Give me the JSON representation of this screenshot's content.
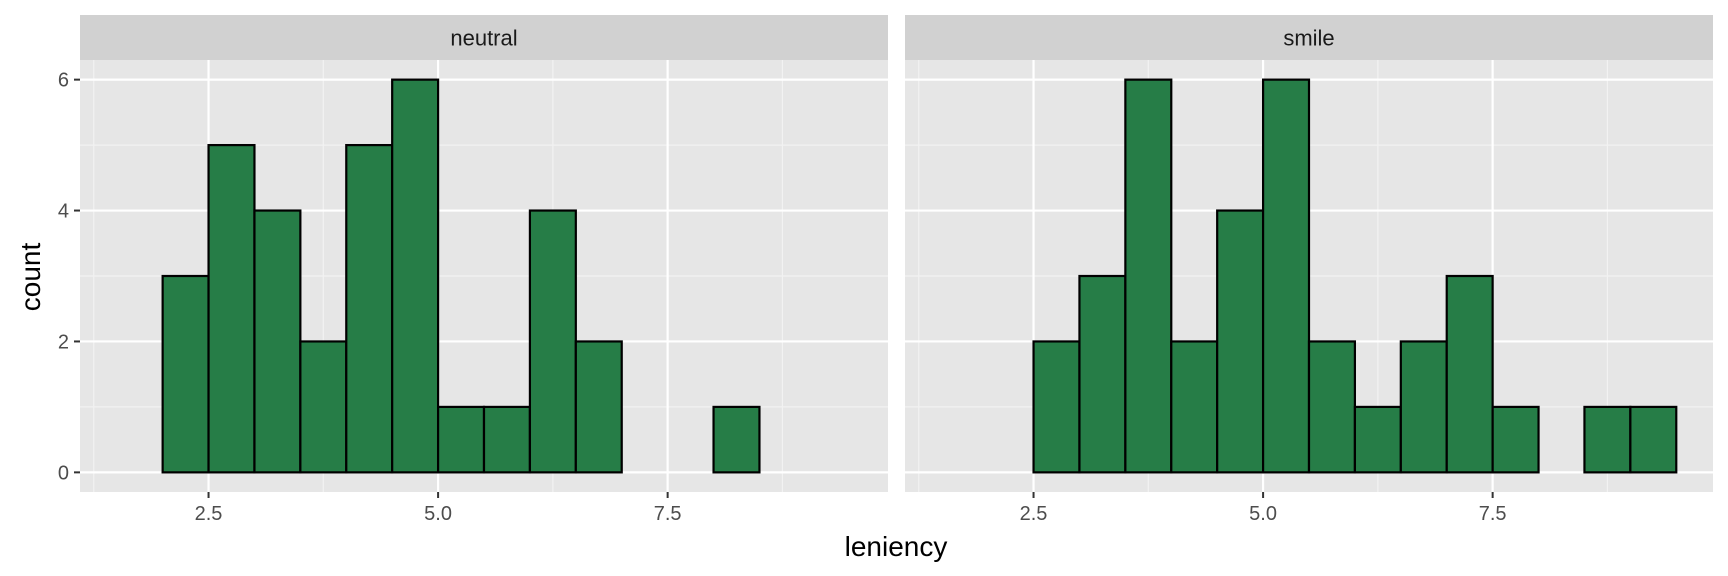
{
  "chart_data": {
    "type": "bar",
    "subtype": "faceted-histogram",
    "xlabel": "leniency",
    "ylabel": "count",
    "xlim": [
      1.1,
      9.9
    ],
    "ylim": [
      -0.3,
      6.3
    ],
    "x_ticks": [
      2.5,
      5.0,
      7.5
    ],
    "x_tick_labels": [
      "2.5",
      "5.0",
      "7.5"
    ],
    "y_ticks": [
      0,
      2,
      4,
      6
    ],
    "y_tick_labels": [
      "0",
      "2",
      "4",
      "6"
    ],
    "grid": true,
    "bar_fill": "#267d47",
    "bar_outline": "#000000",
    "panel_background": "#e6e6e6",
    "strip_background": "#d1d1d1",
    "panels": [
      {
        "label": "neutral",
        "bins": [
          {
            "x0": 1.5,
            "x1": 2.0,
            "count": 0
          },
          {
            "x0": 2.0,
            "x1": 2.5,
            "count": 3
          },
          {
            "x0": 2.5,
            "x1": 3.0,
            "count": 5
          },
          {
            "x0": 3.0,
            "x1": 3.5,
            "count": 4
          },
          {
            "x0": 3.5,
            "x1": 4.0,
            "count": 2
          },
          {
            "x0": 4.0,
            "x1": 4.5,
            "count": 5
          },
          {
            "x0": 4.5,
            "x1": 5.0,
            "count": 6
          },
          {
            "x0": 5.0,
            "x1": 5.5,
            "count": 1
          },
          {
            "x0": 5.5,
            "x1": 6.0,
            "count": 1
          },
          {
            "x0": 6.0,
            "x1": 6.5,
            "count": 4
          },
          {
            "x0": 6.5,
            "x1": 7.0,
            "count": 2
          },
          {
            "x0": 7.0,
            "x1": 7.5,
            "count": 0
          },
          {
            "x0": 7.5,
            "x1": 8.0,
            "count": 0
          },
          {
            "x0": 8.0,
            "x1": 8.5,
            "count": 1
          },
          {
            "x0": 8.5,
            "x1": 9.0,
            "count": 0
          },
          {
            "x0": 9.0,
            "x1": 9.5,
            "count": 0
          }
        ]
      },
      {
        "label": "smile",
        "bins": [
          {
            "x0": 1.5,
            "x1": 2.0,
            "count": 0
          },
          {
            "x0": 2.0,
            "x1": 2.5,
            "count": 0
          },
          {
            "x0": 2.5,
            "x1": 3.0,
            "count": 2
          },
          {
            "x0": 3.0,
            "x1": 3.5,
            "count": 3
          },
          {
            "x0": 3.5,
            "x1": 4.0,
            "count": 6
          },
          {
            "x0": 4.0,
            "x1": 4.5,
            "count": 2
          },
          {
            "x0": 4.5,
            "x1": 5.0,
            "count": 4
          },
          {
            "x0": 5.0,
            "x1": 5.5,
            "count": 6
          },
          {
            "x0": 5.5,
            "x1": 6.0,
            "count": 2
          },
          {
            "x0": 6.0,
            "x1": 6.5,
            "count": 1
          },
          {
            "x0": 6.5,
            "x1": 7.0,
            "count": 2
          },
          {
            "x0": 7.0,
            "x1": 7.5,
            "count": 3
          },
          {
            "x0": 7.5,
            "x1": 8.0,
            "count": 1
          },
          {
            "x0": 8.0,
            "x1": 8.5,
            "count": 0
          },
          {
            "x0": 8.5,
            "x1": 9.0,
            "count": 1
          },
          {
            "x0": 9.0,
            "x1": 9.5,
            "count": 1
          }
        ]
      }
    ]
  }
}
